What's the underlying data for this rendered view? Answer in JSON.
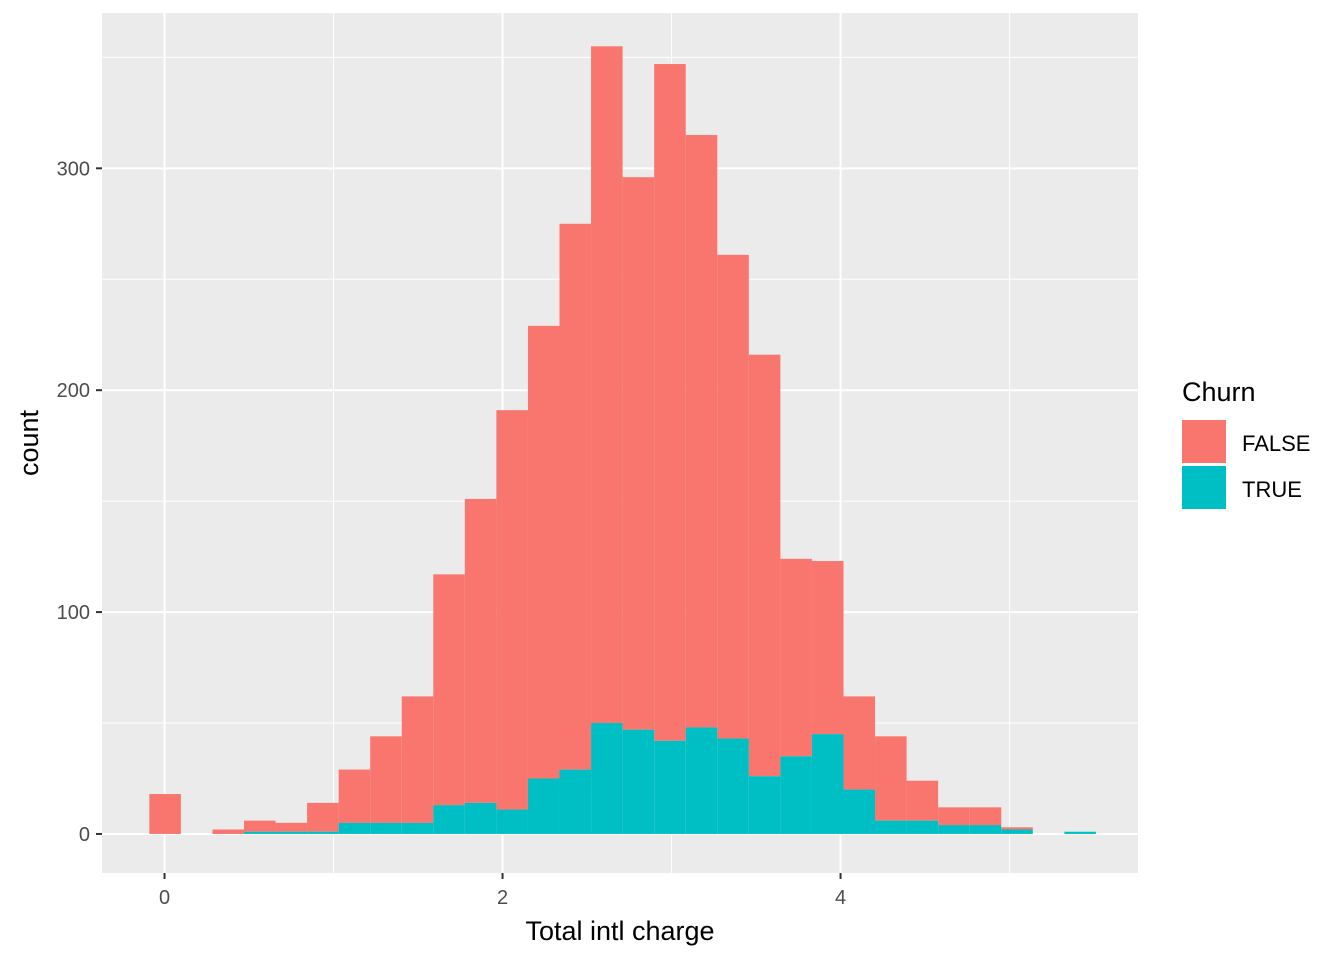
{
  "chart_data": {
    "type": "bar",
    "stacked": true,
    "xlabel": "Total intl charge",
    "ylabel": "count",
    "xlim": [
      -0.37,
      5.76
    ],
    "ylim": [
      -17.6,
      370
    ],
    "x_ticks": [
      0,
      2,
      4
    ],
    "x_tick_labels": [
      "0",
      "2",
      "4"
    ],
    "y_ticks": [
      0,
      100,
      200,
      300
    ],
    "y_tick_labels": [
      "0",
      "100",
      "200",
      "300"
    ],
    "grid": true,
    "legend": {
      "title": "Churn",
      "placement": "right",
      "entries": [
        "FALSE",
        "TRUE"
      ]
    },
    "bins": {
      "x_start": -0.09,
      "bin_width": 0.1867
    },
    "series": [
      {
        "name": "FALSE",
        "color": "#F8766D",
        "values": [
          18,
          0,
          2,
          5,
          4,
          13,
          24,
          39,
          57,
          104,
          137,
          180,
          204,
          246,
          305,
          249,
          305,
          267,
          218,
          190,
          89,
          78,
          42,
          38,
          18,
          8,
          8,
          1,
          0,
          0
        ]
      },
      {
        "name": "TRUE",
        "color": "#00BFC4",
        "values": [
          0,
          0,
          0,
          1,
          1,
          1,
          5,
          5,
          5,
          13,
          14,
          11,
          25,
          29,
          50,
          47,
          42,
          48,
          43,
          26,
          35,
          45,
          20,
          6,
          6,
          4,
          4,
          2,
          0,
          1
        ]
      }
    ]
  }
}
